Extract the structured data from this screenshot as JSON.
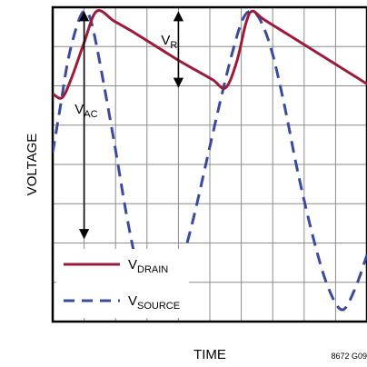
{
  "chart_data": {
    "type": "line",
    "title": "",
    "xlabel": "TIME",
    "ylabel": "VOLTAGE",
    "figure_code": "8672 G09",
    "xlim": [
      0,
      10
    ],
    "ylim": [
      0,
      8
    ],
    "grid": true,
    "x_ticks": [
      0,
      1,
      2,
      3,
      4,
      5,
      6,
      7,
      8,
      9,
      10
    ],
    "y_ticks": [
      0,
      1,
      2,
      3,
      4,
      5,
      6,
      7,
      8
    ],
    "legend": {
      "placement": "bottom-left",
      "entries": [
        {
          "main": "V",
          "sub": "DRAIN"
        },
        {
          "main": "V",
          "sub": "SOURCE"
        }
      ]
    },
    "series": [
      {
        "key": "drain",
        "color": "#9b1b3b",
        "dash": "solid",
        "x": [
          0,
          0.3,
          0.6,
          1.0,
          1.4,
          1.95,
          2.5,
          2.7,
          3.0,
          3.5,
          4.0,
          4.55,
          5.1,
          5.5,
          5.85,
          6.15,
          6.35,
          6.7,
          7.5,
          8.5,
          9.5,
          10
        ],
        "y": [
          5.8,
          5.7,
          6.2,
          7.1,
          7.9,
          7.65,
          7.4,
          7.3,
          7.15,
          6.9,
          6.65,
          6.4,
          6.15,
          5.95,
          6.6,
          7.6,
          7.9,
          7.7,
          7.3,
          6.8,
          6.3,
          6.05
        ]
      },
      {
        "key": "source",
        "color": "#3a4aa0",
        "dash": "dashed",
        "x": [
          0,
          0.25,
          0.5,
          0.8,
          1.0,
          1.2,
          1.45,
          1.95,
          2.4,
          2.85,
          3.3,
          3.7,
          4.1,
          4.5,
          4.9,
          5.3,
          5.7,
          6.05,
          6.35,
          6.65,
          7.0,
          7.4,
          7.8,
          8.3,
          8.75,
          9.2,
          9.6,
          10
        ],
        "y": [
          4.3,
          5.5,
          6.7,
          7.6,
          7.9,
          7.7,
          6.8,
          4.6,
          2.5,
          0.9,
          0.3,
          0.6,
          1.5,
          2.7,
          4.1,
          5.5,
          6.8,
          7.7,
          7.9,
          7.6,
          6.8,
          5.4,
          3.8,
          2.1,
          0.9,
          0.3,
          0.8,
          1.7
        ]
      }
    ],
    "annotations": [
      {
        "key": "vac",
        "main": "V",
        "sub": "AC",
        "x": 1.0,
        "y_from": 7.9,
        "y_to": 2.1,
        "label_x": 0.7,
        "label_y": 5.3
      },
      {
        "key": "vr",
        "main": "V",
        "sub": "R",
        "x": 4.0,
        "y_from": 7.9,
        "y_to": 5.95,
        "label_x": 3.45,
        "label_y": 7.05
      }
    ]
  }
}
